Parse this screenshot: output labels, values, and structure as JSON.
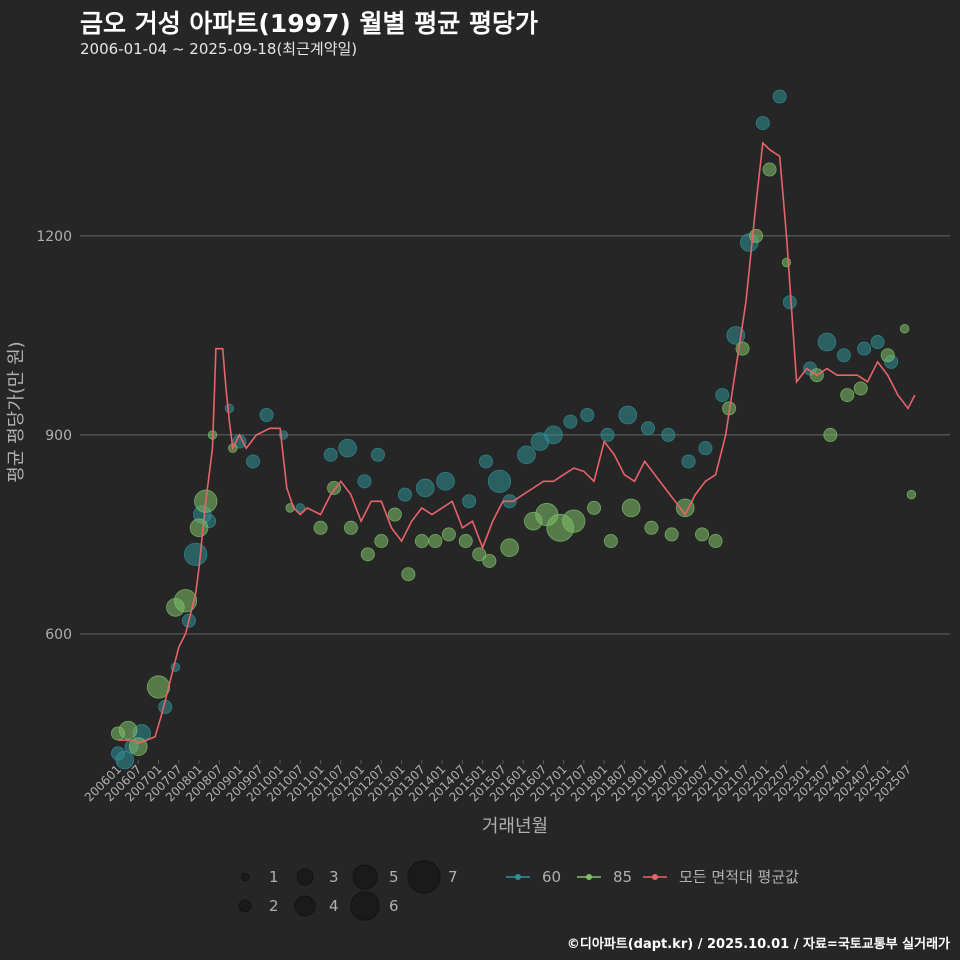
{
  "header": {
    "title": "금오 거성 아파트(1997) 월별 평균 평당가",
    "subtitle": "2006-01-04 ~ 2025-09-18(최근계약일)"
  },
  "footer": {
    "credit": "©디아파트(dapt.kr) / 2025.10.01 / 자료=국토교통부 실거래가"
  },
  "colors": {
    "background": "#262626",
    "grid": "#5a5a5a",
    "s60": "#2f8f96",
    "s85": "#7fbf6a",
    "avg": "#e8636a",
    "text": "#b0b0b0"
  },
  "chart_data": {
    "type": "scatter",
    "xlabel": "거래년월",
    "ylabel": "평균 평당가(만 원)",
    "ylim": [
      410,
      1450
    ],
    "yticks": [
      600,
      900,
      1200
    ],
    "grid": true,
    "legend_position": "bottom",
    "x_ticks": [
      "200601",
      "200607",
      "200701",
      "200707",
      "200801",
      "200807",
      "200901",
      "200907",
      "201001",
      "201007",
      "201101",
      "201107",
      "201201",
      "201207",
      "201301",
      "201307",
      "201401",
      "201407",
      "201501",
      "201507",
      "201601",
      "201607",
      "201701",
      "201707",
      "201801",
      "201807",
      "201901",
      "201907",
      "202001",
      "202007",
      "202101",
      "202107",
      "202201",
      "202207",
      "202301",
      "202307",
      "202401",
      "202407",
      "202501",
      "202507"
    ],
    "size_legend": {
      "values": [
        1,
        2,
        3,
        4,
        5,
        6,
        7
      ]
    },
    "series_legend": [
      "60",
      "85",
      "모든 면적대 평균값"
    ],
    "average_line": {
      "name": "모든 면적대 평균값",
      "points": [
        [
          "200601",
          440
        ],
        [
          "200606",
          440
        ],
        [
          "200607",
          435
        ],
        [
          "200612",
          445
        ],
        [
          "200702",
          480
        ],
        [
          "200705",
          540
        ],
        [
          "200707",
          580
        ],
        [
          "200709",
          600
        ],
        [
          "200712",
          660
        ],
        [
          "200801",
          700
        ],
        [
          "200803",
          800
        ],
        [
          "200805",
          880
        ],
        [
          "200806",
          1030
        ],
        [
          "200808",
          1030
        ],
        [
          "200809",
          970
        ],
        [
          "200810",
          920
        ],
        [
          "200811",
          880
        ],
        [
          "200812",
          890
        ],
        [
          "200901",
          900
        ],
        [
          "200903",
          880
        ],
        [
          "200906",
          900
        ],
        [
          "200908",
          905
        ],
        [
          "200910",
          910
        ],
        [
          "201001",
          910
        ],
        [
          "201003",
          820
        ],
        [
          "201005",
          790
        ],
        [
          "201007",
          780
        ],
        [
          "201009",
          790
        ],
        [
          "201101",
          780
        ],
        [
          "201104",
          810
        ],
        [
          "201107",
          830
        ],
        [
          "201110",
          810
        ],
        [
          "201201",
          770
        ],
        [
          "201204",
          800
        ],
        [
          "201207",
          800
        ],
        [
          "201210",
          760
        ],
        [
          "201301",
          740
        ],
        [
          "201304",
          770
        ],
        [
          "201307",
          790
        ],
        [
          "201310",
          780
        ],
        [
          "201401",
          790
        ],
        [
          "201404",
          800
        ],
        [
          "201407",
          760
        ],
        [
          "201410",
          770
        ],
        [
          "201501",
          730
        ],
        [
          "201504",
          770
        ],
        [
          "201507",
          800
        ],
        [
          "201510",
          800
        ],
        [
          "201601",
          810
        ],
        [
          "201604",
          820
        ],
        [
          "201607",
          830
        ],
        [
          "201610",
          830
        ],
        [
          "201701",
          840
        ],
        [
          "201704",
          850
        ],
        [
          "201707",
          845
        ],
        [
          "201710",
          830
        ],
        [
          "201801",
          890
        ],
        [
          "201804",
          870
        ],
        [
          "201807",
          840
        ],
        [
          "201810",
          830
        ],
        [
          "201901",
          860
        ],
        [
          "201904",
          840
        ],
        [
          "201907",
          820
        ],
        [
          "201910",
          800
        ],
        [
          "202001",
          780
        ],
        [
          "202004",
          810
        ],
        [
          "202007",
          830
        ],
        [
          "202010",
          840
        ],
        [
          "202101",
          900
        ],
        [
          "202104",
          1000
        ],
        [
          "202107",
          1100
        ],
        [
          "202110",
          1250
        ],
        [
          "202112",
          1340
        ],
        [
          "202202",
          1330
        ],
        [
          "202205",
          1320
        ],
        [
          "202207",
          1200
        ],
        [
          "202210",
          980
        ],
        [
          "202301",
          1000
        ],
        [
          "202304",
          990
        ],
        [
          "202307",
          1000
        ],
        [
          "202310",
          990
        ],
        [
          "202401",
          990
        ],
        [
          "202404",
          990
        ],
        [
          "202407",
          980
        ],
        [
          "202410",
          1010
        ],
        [
          "202501",
          990
        ],
        [
          "202504",
          960
        ],
        [
          "202507",
          940
        ],
        [
          "202509",
          960
        ]
      ]
    },
    "series": [
      {
        "name": "60",
        "points": [
          [
            "200601",
            420,
            2
          ],
          [
            "200603",
            410,
            3
          ],
          [
            "200605",
            430,
            2
          ],
          [
            "200608",
            450,
            3
          ],
          [
            "200703",
            490,
            2
          ],
          [
            "200706",
            550,
            1
          ],
          [
            "200710",
            620,
            2
          ],
          [
            "200712",
            720,
            4
          ],
          [
            "200802",
            780,
            3
          ],
          [
            "200804",
            770,
            2
          ],
          [
            "200810",
            940,
            1
          ],
          [
            "200901",
            890,
            2
          ],
          [
            "200905",
            860,
            2
          ],
          [
            "200909",
            930,
            2
          ],
          [
            "201002",
            900,
            1
          ],
          [
            "201007",
            790,
            1
          ],
          [
            "201104",
            870,
            2
          ],
          [
            "201109",
            880,
            3
          ],
          [
            "201202",
            830,
            2
          ],
          [
            "201206",
            870,
            2
          ],
          [
            "201302",
            810,
            2
          ],
          [
            "201308",
            820,
            3
          ],
          [
            "201402",
            830,
            3
          ],
          [
            "201409",
            800,
            2
          ],
          [
            "201502",
            860,
            2
          ],
          [
            "201506",
            830,
            4
          ],
          [
            "201509",
            800,
            2
          ],
          [
            "201602",
            870,
            3
          ],
          [
            "201606",
            890,
            3
          ],
          [
            "201610",
            900,
            3
          ],
          [
            "201703",
            920,
            2
          ],
          [
            "201708",
            930,
            2
          ],
          [
            "201802",
            900,
            2
          ],
          [
            "201808",
            930,
            3
          ],
          [
            "201902",
            910,
            2
          ],
          [
            "201908",
            900,
            2
          ],
          [
            "202002",
            860,
            2
          ],
          [
            "202007",
            880,
            2
          ],
          [
            "202012",
            960,
            2
          ],
          [
            "202104",
            1050,
            3
          ],
          [
            "202108",
            1190,
            3
          ],
          [
            "202112",
            1370,
            2
          ],
          [
            "202205",
            1410,
            2
          ],
          [
            "202208",
            1100,
            2
          ],
          [
            "202302",
            1000,
            2
          ],
          [
            "202307",
            1040,
            3
          ],
          [
            "202312",
            1020,
            2
          ],
          [
            "202406",
            1030,
            2
          ],
          [
            "202410",
            1040,
            2
          ],
          [
            "202502",
            1010,
            2
          ]
        ]
      },
      {
        "name": "85",
        "points": [
          [
            "200601",
            450,
            2
          ],
          [
            "200604",
            455,
            3
          ],
          [
            "200607",
            430,
            3
          ],
          [
            "200701",
            520,
            4
          ],
          [
            "200706",
            640,
            3
          ],
          [
            "200709",
            650,
            4
          ],
          [
            "200801",
            760,
            3
          ],
          [
            "200803",
            800,
            4
          ],
          [
            "200805",
            900,
            1
          ],
          [
            "200811",
            880,
            1
          ],
          [
            "201004",
            790,
            1
          ],
          [
            "201101",
            760,
            2
          ],
          [
            "201105",
            820,
            2
          ],
          [
            "201110",
            760,
            2
          ],
          [
            "201203",
            720,
            2
          ],
          [
            "201207",
            740,
            2
          ],
          [
            "201211",
            780,
            2
          ],
          [
            "201303",
            690,
            2
          ],
          [
            "201307",
            740,
            2
          ],
          [
            "201311",
            740,
            2
          ],
          [
            "201403",
            750,
            2
          ],
          [
            "201408",
            740,
            2
          ],
          [
            "201412",
            720,
            2
          ],
          [
            "201503",
            710,
            2
          ],
          [
            "201509",
            730,
            3
          ],
          [
            "201604",
            770,
            3
          ],
          [
            "201608",
            780,
            4
          ],
          [
            "201612",
            760,
            5
          ],
          [
            "201704",
            770,
            4
          ],
          [
            "201710",
            790,
            2
          ],
          [
            "201803",
            740,
            2
          ],
          [
            "201809",
            790,
            3
          ],
          [
            "201903",
            760,
            2
          ],
          [
            "201909",
            750,
            2
          ],
          [
            "202001",
            790,
            3
          ],
          [
            "202006",
            750,
            2
          ],
          [
            "202010",
            740,
            2
          ],
          [
            "202102",
            940,
            2
          ],
          [
            "202106",
            1030,
            2
          ],
          [
            "202110",
            1200,
            2
          ],
          [
            "202202",
            1300,
            2
          ],
          [
            "202207",
            1160,
            1
          ],
          [
            "202304",
            990,
            2
          ],
          [
            "202308",
            900,
            2
          ],
          [
            "202401",
            960,
            2
          ],
          [
            "202405",
            970,
            2
          ],
          [
            "202501",
            1020,
            2
          ],
          [
            "202506",
            1060,
            1
          ],
          [
            "202508",
            810,
            1
          ]
        ]
      }
    ]
  }
}
